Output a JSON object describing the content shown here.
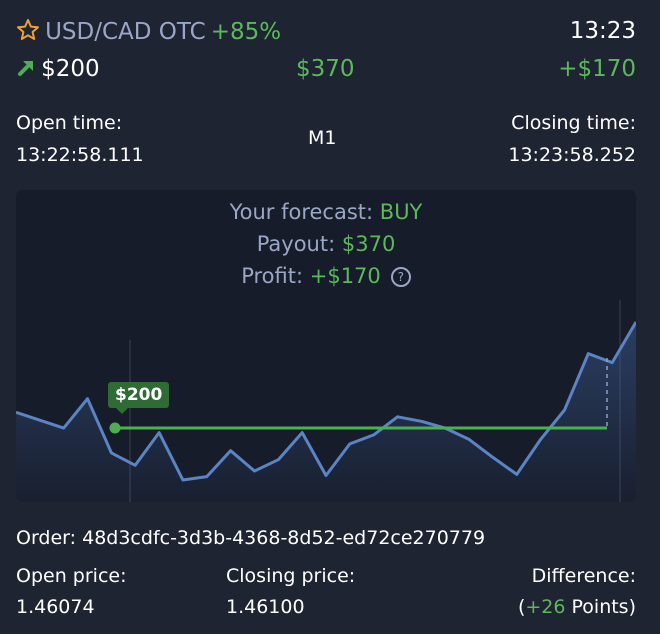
{
  "header": {
    "asset": "USD/CAD OTC",
    "payout_percent": "+85%",
    "time": "13:23",
    "direction_icon": "arrow-up-right-icon",
    "amount": "$200",
    "payout": "$370",
    "profit": "+$170"
  },
  "times": {
    "open_label": "Open time:",
    "open_value": "13:22:58.111",
    "timeframe": "M1",
    "close_label": "Closing time:",
    "close_value": "13:23:58.252"
  },
  "forecast": {
    "label": "Your forecast: ",
    "value": "BUY",
    "payout_label": "Payout: ",
    "payout_value": "$370",
    "profit_label": "Profit: ",
    "profit_value": "+$170",
    "help_icon": "question-circle-icon"
  },
  "chart": {
    "entry_tag": "$200",
    "colors": {
      "price_line": "#5b84c4",
      "entry_line": "#4caf50"
    },
    "price_series": [
      3.0,
      2.65,
      2.3,
      3.6,
      1.2,
      0.65,
      2.1,
      0.0,
      0.15,
      1.3,
      0.4,
      0.9,
      2.1,
      0.2,
      1.6,
      2.0,
      2.8,
      2.6,
      2.3,
      1.8,
      1.0,
      0.25,
      1.8,
      3.1,
      5.6,
      5.2,
      7.0
    ]
  },
  "order": {
    "label": "Order: ",
    "id": "48d3cdfc-3d3b-4368-8d52-ed72ce270779"
  },
  "prices": {
    "open_label": "Open price:",
    "open_value": "1.46074",
    "close_label": "Closing price:",
    "close_value": "1.46100",
    "diff_label": "Difference:",
    "diff_open": "(",
    "diff_points": "+26",
    "diff_suffix": " Points)"
  }
}
